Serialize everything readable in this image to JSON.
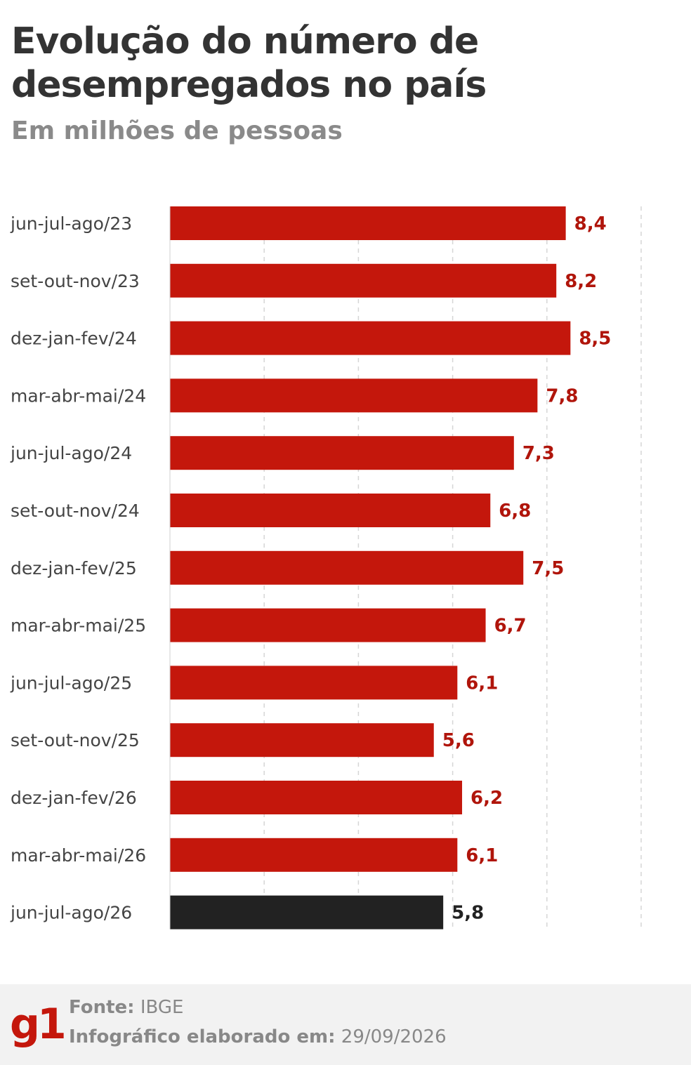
{
  "title_line1": "Evolução do número de",
  "title_line2": "desempregados no país",
  "subtitle": "Em milhões de pessoas",
  "colors": {
    "bar": "#c4170c",
    "highlight": "#222222",
    "label_red": "#b0150b",
    "label_dark": "#222222"
  },
  "chart_data": {
    "type": "bar",
    "orientation": "horizontal",
    "categories": [
      "jun-jul-ago/23",
      "set-out-nov/23",
      "dez-jan-fev/24",
      "mar-abr-mai/24",
      "jun-jul-ago/24",
      "set-out-nov/24",
      "dez-jan-fev/25",
      "mar-abr-mai/25",
      "jun-jul-ago/25",
      "set-out-nov/25",
      "dez-jan-fev/26",
      "mar-abr-mai/26",
      "jun-jul-ago/26"
    ],
    "values": [
      8.4,
      8.2,
      8.5,
      7.8,
      7.3,
      6.8,
      7.5,
      6.7,
      6.1,
      5.6,
      6.2,
      6.1,
      5.8
    ],
    "value_labels": [
      "8,4",
      "8,2",
      "8,5",
      "7,8",
      "7,3",
      "6,8",
      "7,5",
      "6,7",
      "6,1",
      "5,6",
      "6,2",
      "6,1",
      "5,8"
    ],
    "highlight_index": 12,
    "xlim": [
      0,
      10
    ],
    "gridlines": [
      2,
      4,
      6,
      8,
      10
    ],
    "grid": true,
    "title": "Evolução do número de desempregados no país",
    "subtitle": "Em milhões de pessoas"
  },
  "footer": {
    "logo": "g1",
    "source_label": "Fonte:",
    "source_value": "IBGE",
    "date_label": "Infográfico elaborado em:",
    "date_value": "29/09/2026"
  }
}
